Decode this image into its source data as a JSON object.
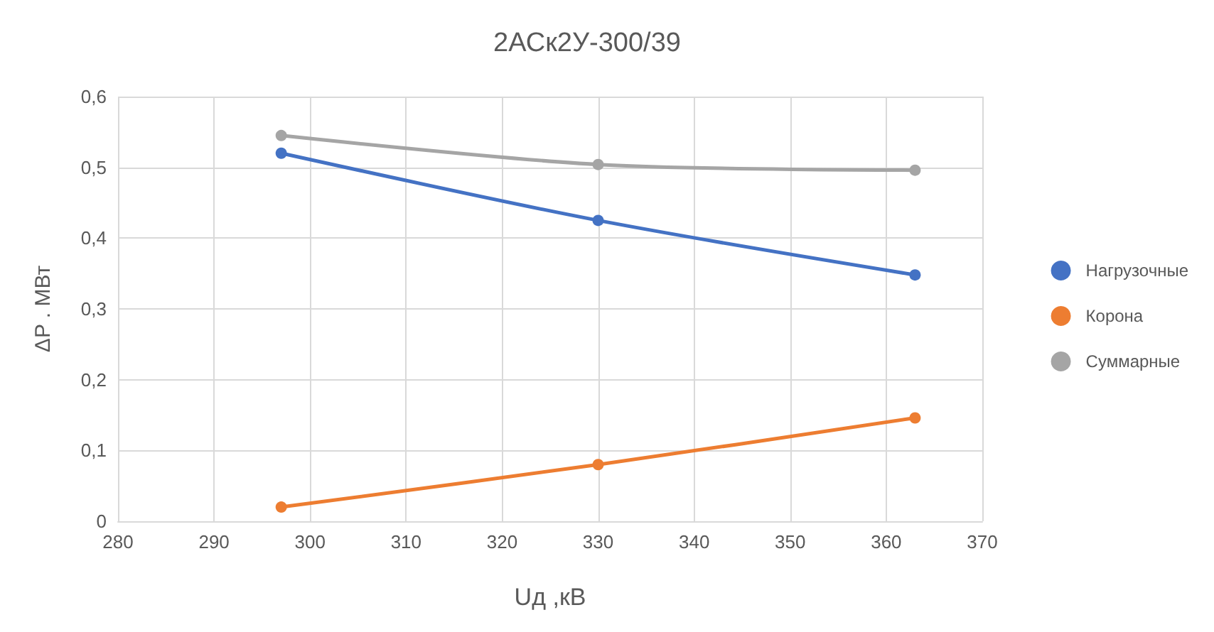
{
  "chart_data": {
    "type": "line",
    "title": "2АСк2У-300/39",
    "xlabel": "Uд ,кВ",
    "ylabel": "ΔP . МВт",
    "x": [
      297,
      330,
      363
    ],
    "series": [
      {
        "name": "Нагрузочные",
        "color": "#4472c4",
        "values": [
          0.52,
          0.425,
          0.348
        ]
      },
      {
        "name": "Корона",
        "color": "#ed7d31",
        "values": [
          0.02,
          0.08,
          0.146
        ]
      },
      {
        "name": "Суммарные",
        "color": "#a5a5a5",
        "values": [
          0.545,
          0.504,
          0.496
        ]
      }
    ],
    "xlim": [
      280,
      370
    ],
    "xticks": [
      280,
      290,
      300,
      310,
      320,
      330,
      340,
      350,
      360,
      370
    ],
    "ylim": [
      0,
      0.6
    ],
    "yticks": [
      0,
      {
        "value": 0.1,
        "label": "0,1"
      },
      {
        "value": 0.2,
        "label": "0,2"
      },
      {
        "value": 0.3,
        "label": "0,3"
      },
      {
        "value": 0.4,
        "label": "0,4"
      },
      {
        "value": 0.5,
        "label": "0,5"
      },
      {
        "value": 0.6,
        "label": "0,6"
      }
    ],
    "grid": true,
    "legend": "right",
    "marker": "circle",
    "line_style": "solid"
  }
}
